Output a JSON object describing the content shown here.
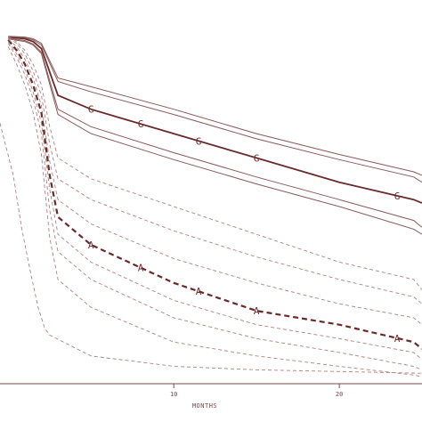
{
  "chart_data": {
    "type": "line",
    "title": "",
    "xlabel": "MONTHS",
    "ylabel": "",
    "xlim": [
      -0.5,
      25
    ],
    "ylim": [
      0,
      1.02
    ],
    "x_ticks": [
      10,
      20
    ],
    "grid": false,
    "colors": {
      "primary": "#6b2a2a",
      "band": "#8a5a5a",
      "dashed": "#b08080",
      "axis": "#7a4a4a"
    },
    "series": [
      {
        "marker": "G",
        "style": "solid",
        "role": "primary",
        "x": [
          0,
          1,
          1.5,
          2,
          3,
          5,
          10,
          15,
          20,
          24.5,
          25
        ],
        "y": [
          0.998,
          0.993,
          0.985,
          0.965,
          0.83,
          0.79,
          0.72,
          0.65,
          0.58,
          0.53,
          0.52
        ]
      },
      {
        "style": "solid",
        "role": "band",
        "x": [
          0,
          1,
          1.5,
          2,
          3,
          5,
          10,
          15,
          20,
          24.5,
          25
        ],
        "y": [
          1.0,
          0.996,
          0.99,
          0.975,
          0.87,
          0.84,
          0.775,
          0.705,
          0.645,
          0.595,
          0.58
        ]
      },
      {
        "style": "solid",
        "role": "band",
        "x": [
          0,
          1,
          1.5,
          2,
          3,
          5,
          10,
          15,
          20,
          24.5,
          25
        ],
        "y": [
          1.0,
          0.998,
          0.993,
          0.98,
          0.88,
          0.855,
          0.79,
          0.72,
          0.66,
          0.61,
          0.6
        ]
      },
      {
        "style": "solid",
        "role": "band",
        "x": [
          0,
          1,
          1.5,
          2,
          3,
          5,
          10,
          15,
          20,
          24.5,
          25
        ],
        "y": [
          0.995,
          0.988,
          0.978,
          0.955,
          0.79,
          0.74,
          0.665,
          0.595,
          0.53,
          0.47,
          0.45
        ]
      },
      {
        "style": "solid",
        "role": "band",
        "x": [
          0,
          1,
          1.5,
          2,
          3,
          5,
          10,
          15,
          20,
          24.5,
          25
        ],
        "y": [
          0.993,
          0.985,
          0.975,
          0.95,
          0.775,
          0.72,
          0.645,
          0.575,
          0.51,
          0.445,
          0.43
        ]
      },
      {
        "marker": "A",
        "style": "dashed",
        "role": "primary",
        "x": [
          0,
          0.5,
          1,
          1.5,
          2,
          2.5,
          3,
          5,
          10,
          15,
          20,
          24.5,
          25
        ],
        "y": [
          0.99,
          0.96,
          0.92,
          0.86,
          0.78,
          0.6,
          0.48,
          0.4,
          0.29,
          0.21,
          0.17,
          0.12,
          0.1
        ]
      },
      {
        "style": "dashed",
        "role": "band",
        "x": [
          0,
          0.5,
          1,
          1.5,
          2,
          2.5,
          3,
          5,
          10,
          15,
          20,
          24.5,
          25
        ],
        "y": [
          1.0,
          0.985,
          0.96,
          0.92,
          0.86,
          0.74,
          0.65,
          0.59,
          0.51,
          0.43,
          0.35,
          0.3,
          0.27
        ]
      },
      {
        "style": "dashed",
        "role": "band",
        "x": [
          0,
          0.5,
          1,
          1.5,
          2,
          2.5,
          3,
          5,
          10,
          15,
          20,
          24.5,
          25
        ],
        "y": [
          0.995,
          0.98,
          0.95,
          0.9,
          0.83,
          0.69,
          0.59,
          0.53,
          0.44,
          0.365,
          0.3,
          0.25,
          0.23
        ]
      },
      {
        "style": "dashed",
        "role": "band",
        "x": [
          0,
          0.5,
          1,
          1.5,
          2,
          2.5,
          3,
          5,
          10,
          15,
          20,
          24.5,
          25
        ],
        "y": [
          0.992,
          0.97,
          0.935,
          0.88,
          0.8,
          0.64,
          0.53,
          0.46,
          0.36,
          0.29,
          0.23,
          0.19,
          0.17
        ]
      },
      {
        "style": "dashed",
        "role": "band",
        "x": [
          0,
          0.5,
          1,
          1.5,
          2,
          2.5,
          3,
          5,
          10,
          15,
          20,
          24.5,
          25
        ],
        "y": [
          0.985,
          0.95,
          0.905,
          0.84,
          0.75,
          0.56,
          0.43,
          0.35,
          0.24,
          0.17,
          0.13,
          0.09,
          0.07
        ]
      },
      {
        "style": "dashed",
        "role": "band",
        "x": [
          0,
          0.5,
          1,
          1.5,
          2,
          2.5,
          3,
          5,
          10,
          15,
          20,
          24.5,
          25
        ],
        "y": [
          0.98,
          0.94,
          0.89,
          0.82,
          0.72,
          0.5,
          0.38,
          0.3,
          0.19,
          0.13,
          0.09,
          0.05,
          0.04
        ]
      },
      {
        "style": "dashed",
        "role": "band",
        "x": [
          0,
          0.5,
          1,
          1.5,
          2,
          2.5,
          3,
          5,
          10,
          15,
          20,
          24.5,
          25
        ],
        "y": [
          0.97,
          0.92,
          0.86,
          0.78,
          0.66,
          0.42,
          0.3,
          0.22,
          0.12,
          0.08,
          0.05,
          0.025,
          0.02
        ]
      },
      {
        "style": "dashed",
        "role": "band",
        "x": [
          -0.5,
          0.3,
          0.8,
          1.3,
          1.8,
          2.2,
          2.5,
          5,
          10,
          15,
          20,
          25
        ],
        "y": [
          0.75,
          0.6,
          0.45,
          0.33,
          0.22,
          0.16,
          0.14,
          0.08,
          0.05,
          0.04,
          0.035,
          0.03
        ]
      }
    ]
  }
}
